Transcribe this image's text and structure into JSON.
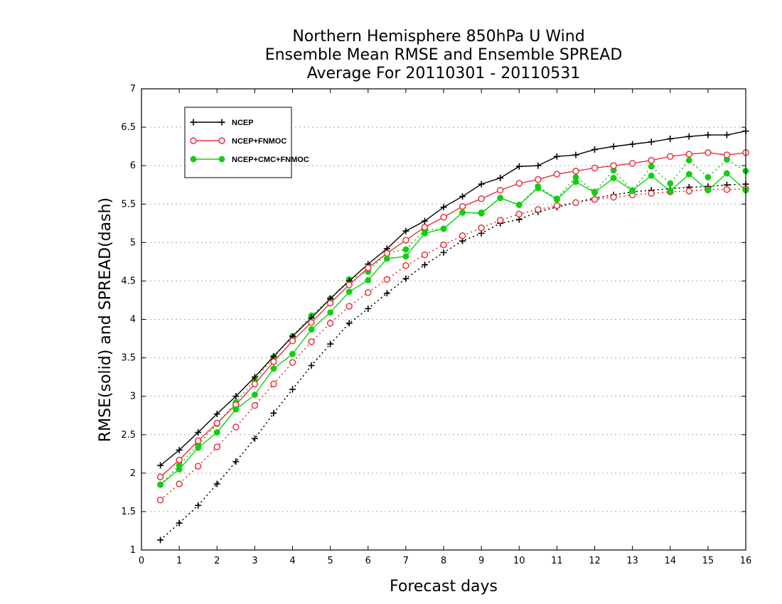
{
  "chart_data": {
    "type": "line",
    "title_lines": [
      "Northern Hemisphere 850hPa U Wind",
      "Ensemble Mean RMSE and Ensemble SPREAD",
      "Average For 20110301 - 20110531"
    ],
    "xlabel": "Forecast days",
    "ylabel": "RMSE(solid) and SPREAD(dash)",
    "xlim": [
      0,
      16
    ],
    "ylim": [
      1,
      7
    ],
    "x_ticks": [
      "0",
      "1",
      "2",
      "3",
      "4",
      "5",
      "6",
      "7",
      "8",
      "9",
      "10",
      "11",
      "12",
      "13",
      "14",
      "15",
      "16"
    ],
    "y_ticks": [
      "1",
      "1.5",
      "2",
      "2.5",
      "3",
      "3.5",
      "4",
      "4.5",
      "5",
      "5.5",
      "6",
      "6.5",
      "7"
    ],
    "grid": "horizontal dotted",
    "legend_position": "top-left",
    "x": [
      0.5,
      1,
      1.5,
      2,
      2.5,
      3,
      3.5,
      4,
      4.5,
      5,
      5.5,
      6,
      6.5,
      7,
      7.5,
      8,
      8.5,
      9,
      9.5,
      10,
      10.5,
      11,
      11.5,
      12,
      12.5,
      13,
      13.5,
      14,
      14.5,
      15,
      15.5,
      16
    ],
    "series": [
      {
        "name": "NCEP",
        "color": "#000000",
        "marker": "plus",
        "rmse": [
          2.1,
          2.3,
          2.53,
          2.77,
          3.0,
          3.25,
          3.52,
          3.78,
          4.02,
          4.27,
          4.5,
          4.72,
          4.92,
          5.15,
          5.28,
          5.46,
          5.6,
          5.76,
          5.84,
          5.99,
          6.0,
          6.12,
          6.14,
          6.21,
          6.25,
          6.28,
          6.31,
          6.35,
          6.38,
          6.4,
          6.4,
          6.45
        ],
        "spread": [
          1.13,
          1.35,
          1.58,
          1.86,
          2.15,
          2.45,
          2.78,
          3.09,
          3.4,
          3.68,
          3.95,
          4.14,
          4.34,
          4.53,
          4.71,
          4.87,
          5.02,
          5.12,
          5.25,
          5.3,
          5.4,
          5.46,
          5.52,
          5.58,
          5.62,
          5.66,
          5.68,
          5.7,
          5.72,
          5.73,
          5.75,
          5.76
        ]
      },
      {
        "name": "NCEP+FNMOC",
        "color": "#e8323c",
        "marker": "circle",
        "rmse": [
          1.95,
          2.17,
          2.42,
          2.65,
          2.89,
          3.16,
          3.45,
          3.72,
          3.96,
          4.21,
          4.45,
          4.67,
          4.86,
          5.03,
          5.2,
          5.33,
          5.47,
          5.57,
          5.68,
          5.77,
          5.82,
          5.89,
          5.93,
          5.97,
          6.0,
          6.03,
          6.07,
          6.12,
          6.15,
          6.17,
          6.14,
          6.17
        ],
        "spread": [
          1.65,
          1.86,
          2.09,
          2.34,
          2.6,
          2.88,
          3.16,
          3.44,
          3.71,
          3.95,
          4.17,
          4.35,
          4.52,
          4.7,
          4.84,
          4.97,
          5.09,
          5.19,
          5.29,
          5.37,
          5.43,
          5.48,
          5.52,
          5.56,
          5.59,
          5.62,
          5.64,
          5.66,
          5.67,
          5.69,
          5.69,
          5.7
        ]
      },
      {
        "name": "NCEP+CMC+FNMOC",
        "color": "#10d010",
        "marker": "dot",
        "rmse": [
          1.85,
          2.05,
          2.33,
          2.53,
          2.83,
          3.02,
          3.36,
          3.55,
          3.87,
          4.09,
          4.36,
          4.51,
          4.79,
          4.82,
          5.12,
          5.18,
          5.39,
          5.38,
          5.58,
          5.49,
          5.71,
          5.56,
          5.79,
          5.65,
          5.84,
          5.68,
          5.87,
          5.67,
          5.89,
          5.68,
          5.9,
          5.68
        ],
        "spread": [
          1.85,
          2.1,
          2.37,
          2.64,
          2.92,
          3.21,
          3.51,
          3.78,
          4.05,
          4.27,
          4.52,
          4.62,
          4.87,
          4.91,
          5.16,
          5.18,
          5.39,
          5.39,
          5.58,
          5.49,
          5.73,
          5.57,
          5.85,
          5.66,
          5.94,
          5.67,
          5.99,
          5.77,
          6.07,
          5.85,
          6.08,
          5.93
        ]
      }
    ]
  }
}
